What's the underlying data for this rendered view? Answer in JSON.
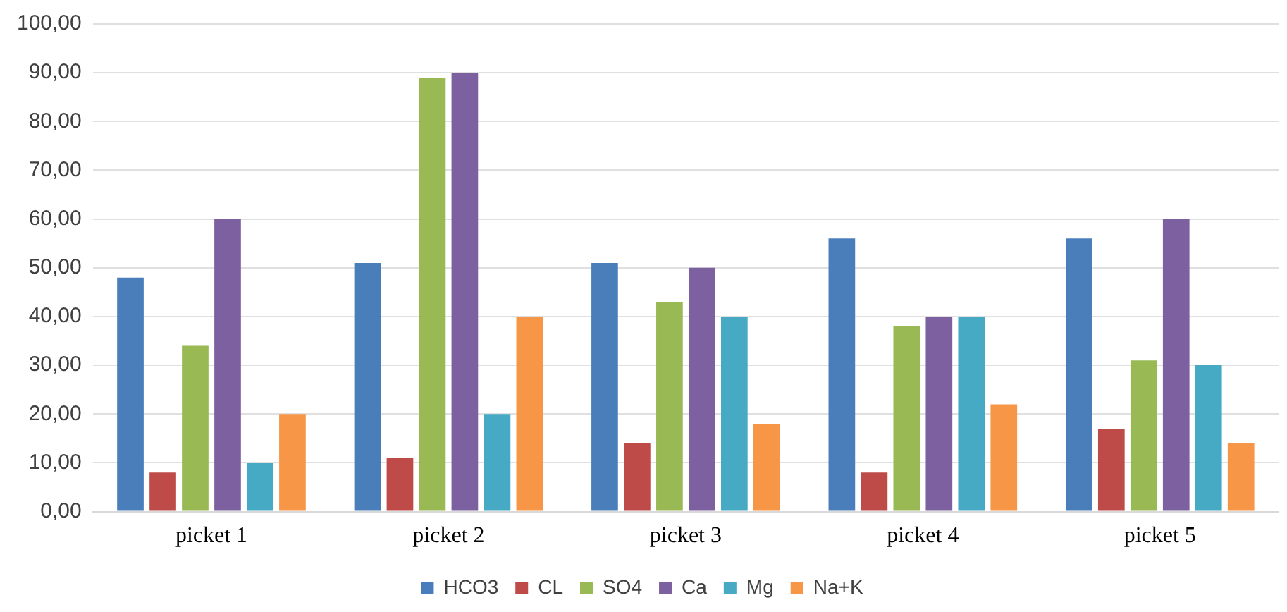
{
  "chart_data": {
    "type": "bar",
    "categories": [
      "picket 1",
      "picket 2",
      "picket 3",
      "picket 4",
      "picket 5"
    ],
    "series": [
      {
        "name": "HCO3",
        "color": "#4a7ebb",
        "values": [
          48,
          51,
          51,
          56,
          56
        ]
      },
      {
        "name": "CL",
        "color": "#be4b48",
        "values": [
          8,
          11,
          14,
          8,
          17
        ]
      },
      {
        "name": "SO4",
        "color": "#98b954",
        "values": [
          34,
          89,
          43,
          38,
          31
        ]
      },
      {
        "name": "Ca",
        "color": "#7d60a0",
        "values": [
          60,
          90,
          50,
          40,
          60
        ]
      },
      {
        "name": "Mg",
        "color": "#46aac5",
        "values": [
          10,
          20,
          40,
          40,
          30
        ]
      },
      {
        "name": "Na+K",
        "color": "#f79646",
        "values": [
          20,
          40,
          18,
          22,
          14
        ]
      }
    ],
    "ylim": [
      0,
      100
    ],
    "yticks": [
      {
        "value": 0,
        "label": "0,00"
      },
      {
        "value": 10,
        "label": "10,00"
      },
      {
        "value": 20,
        "label": "20,00"
      },
      {
        "value": 30,
        "label": "30,00"
      },
      {
        "value": 40,
        "label": "40,00"
      },
      {
        "value": 50,
        "label": "50,00"
      },
      {
        "value": 60,
        "label": "60,00"
      },
      {
        "value": 70,
        "label": "70,00"
      },
      {
        "value": 80,
        "label": "80,00"
      },
      {
        "value": 90,
        "label": "90,00"
      },
      {
        "value": 100,
        "label": "100,00"
      }
    ],
    "grid": "y",
    "legend": "bottom"
  }
}
